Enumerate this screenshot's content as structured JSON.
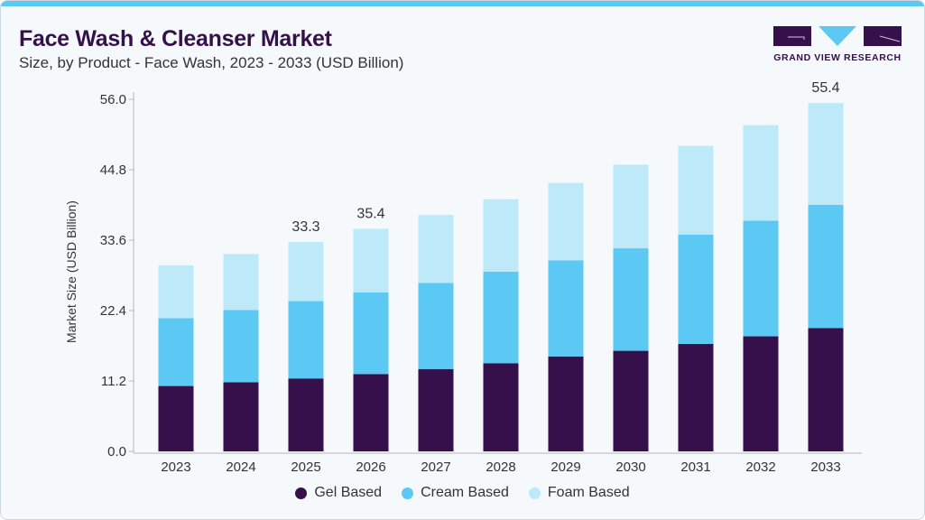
{
  "header": {
    "title": "Face Wash & Cleanser Market",
    "subtitle": "Size, by Product - Face Wash, 2023 - 2033 (USD Billion)"
  },
  "logo": {
    "text": "GRAND VIEW RESEARCH",
    "colors": {
      "dark": "#35104a",
      "accent": "#5cc9f5"
    }
  },
  "chart_data": {
    "type": "bar",
    "stacked": true,
    "title": "Face Wash & Cleanser Market",
    "subtitle": "Size, by Product - Face Wash, 2023 - 2033 (USD Billion)",
    "xlabel": "",
    "ylabel": "Market Size (USD Billion)",
    "ylim": [
      0,
      56
    ],
    "yticks": [
      "0.0",
      "11.2",
      "22.4",
      "33.6",
      "44.8",
      "56.0"
    ],
    "grid": false,
    "legend_position": "bottom",
    "categories": [
      "2023",
      "2024",
      "2025",
      "2026",
      "2027",
      "2028",
      "2029",
      "2030",
      "2031",
      "2032",
      "2033"
    ],
    "series": [
      {
        "name": "Gel Based",
        "color": "#35104a",
        "values": [
          10.4,
          11.0,
          11.6,
          12.3,
          13.1,
          14.0,
          15.1,
          16.0,
          17.1,
          18.3,
          19.6
        ]
      },
      {
        "name": "Cream Based",
        "color": "#5cc9f5",
        "values": [
          10.8,
          11.5,
          12.3,
          13.0,
          13.7,
          14.6,
          15.3,
          16.3,
          17.4,
          18.4,
          19.6
        ]
      },
      {
        "name": "Foam Based",
        "color": "#bde9f9",
        "values": [
          8.4,
          8.9,
          9.4,
          10.1,
          10.8,
          11.5,
          12.3,
          13.3,
          14.1,
          15.2,
          16.2
        ]
      }
    ],
    "data_labels": [
      {
        "category": "2025",
        "text": "33.3"
      },
      {
        "category": "2026",
        "text": "35.4"
      },
      {
        "category": "2033",
        "text": "55.4"
      }
    ]
  }
}
